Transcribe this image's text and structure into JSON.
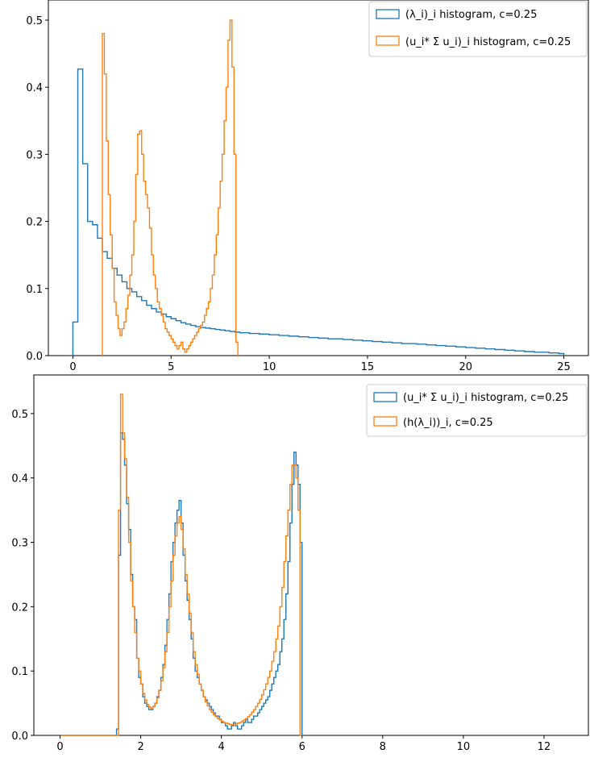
{
  "chart_data": [
    {
      "type": "histogram",
      "xlim": [
        -1.25,
        26.25
      ],
      "ylim": [
        0,
        0.53
      ],
      "xticks": [
        0,
        5,
        10,
        15,
        20,
        25
      ],
      "yticks": [
        0.0,
        0.1,
        0.2,
        0.3,
        0.4,
        0.5
      ],
      "xtick_labels": [
        "0",
        "5",
        "10",
        "15",
        "20",
        "25"
      ],
      "ytick_labels": [
        "0.0",
        "0.1",
        "0.2",
        "0.3",
        "0.4",
        "0.5"
      ],
      "legend_position": "top-right",
      "series": [
        {
          "name": "(λ_i)_i histogram, c=0.25",
          "color": "#1f77b4",
          "bin_start": 0.0,
          "bin_width": 0.25,
          "values": [
            0.05,
            0.427,
            0.286,
            0.2,
            0.195,
            0.175,
            0.155,
            0.145,
            0.13,
            0.12,
            0.11,
            0.1,
            0.095,
            0.088,
            0.082,
            0.075,
            0.07,
            0.065,
            0.062,
            0.058,
            0.055,
            0.052,
            0.049,
            0.047,
            0.045,
            0.043,
            0.042,
            0.041,
            0.04,
            0.039,
            0.038,
            0.037,
            0.036,
            0.035,
            0.034,
            0.034,
            0.033,
            0.033,
            0.032,
            0.032,
            0.031,
            0.031,
            0.03,
            0.03,
            0.029,
            0.029,
            0.028,
            0.028,
            0.027,
            0.027,
            0.026,
            0.026,
            0.025,
            0.025,
            0.025,
            0.024,
            0.024,
            0.023,
            0.023,
            0.022,
            0.022,
            0.021,
            0.021,
            0.02,
            0.02,
            0.019,
            0.019,
            0.018,
            0.018,
            0.018,
            0.017,
            0.017,
            0.016,
            0.016,
            0.015,
            0.015,
            0.014,
            0.014,
            0.013,
            0.013,
            0.012,
            0.012,
            0.011,
            0.011,
            0.01,
            0.01,
            0.009,
            0.009,
            0.008,
            0.008,
            0.007,
            0.007,
            0.006,
            0.006,
            0.005,
            0.005,
            0.005,
            0.004,
            0.004,
            0.003
          ]
        },
        {
          "name": "(u_i* Σ u_i)_i histogram, c=0.25",
          "color": "#ff7f0e",
          "bin_start": 1.5,
          "bin_width": 0.1,
          "values": [
            0.48,
            0.42,
            0.32,
            0.24,
            0.18,
            0.13,
            0.08,
            0.06,
            0.04,
            0.03,
            0.04,
            0.05,
            0.07,
            0.09,
            0.12,
            0.15,
            0.2,
            0.27,
            0.33,
            0.335,
            0.3,
            0.26,
            0.24,
            0.22,
            0.19,
            0.15,
            0.12,
            0.1,
            0.08,
            0.07,
            0.06,
            0.05,
            0.04,
            0.035,
            0.03,
            0.025,
            0.02,
            0.015,
            0.01,
            0.015,
            0.02,
            0.01,
            0.005,
            0.01,
            0.015,
            0.02,
            0.025,
            0.03,
            0.035,
            0.04,
            0.045,
            0.05,
            0.06,
            0.07,
            0.08,
            0.1,
            0.12,
            0.15,
            0.18,
            0.22,
            0.26,
            0.3,
            0.35,
            0.4,
            0.47,
            0.5,
            0.43,
            0.3,
            0.02
          ]
        }
      ]
    },
    {
      "type": "histogram",
      "xlim": [
        -0.65,
        13.1
      ],
      "ylim": [
        0,
        0.56
      ],
      "xticks": [
        0,
        2,
        4,
        6,
        8,
        10,
        12
      ],
      "yticks": [
        0.0,
        0.1,
        0.2,
        0.3,
        0.4,
        0.5
      ],
      "xtick_labels": [
        "0",
        "2",
        "4",
        "6",
        "8",
        "10",
        "12"
      ],
      "ytick_labels": [
        "0.0",
        "0.1",
        "0.2",
        "0.3",
        "0.4",
        "0.5"
      ],
      "legend_position": "top-right",
      "series": [
        {
          "name": "(u_i* Σ u_i)_i histogram, c=0.25",
          "color": "#1f77b4",
          "bin_start": 0.0,
          "bin_width": 0.05,
          "values": [
            0,
            0,
            0,
            0,
            0,
            0,
            0,
            0,
            0,
            0,
            0,
            0,
            0,
            0,
            0,
            0,
            0,
            0,
            0,
            0,
            0,
            0,
            0,
            0,
            0,
            0,
            0,
            0,
            0.01,
            0.28,
            0.47,
            0.46,
            0.42,
            0.36,
            0.32,
            0.25,
            0.2,
            0.18,
            0.12,
            0.09,
            0.08,
            0.06,
            0.05,
            0.045,
            0.04,
            0.04,
            0.045,
            0.05,
            0.06,
            0.07,
            0.09,
            0.11,
            0.14,
            0.18,
            0.22,
            0.27,
            0.3,
            0.33,
            0.35,
            0.365,
            0.33,
            0.28,
            0.24,
            0.21,
            0.18,
            0.15,
            0.12,
            0.1,
            0.09,
            0.08,
            0.07,
            0.06,
            0.055,
            0.05,
            0.045,
            0.04,
            0.035,
            0.03,
            0.03,
            0.025,
            0.02,
            0.02,
            0.015,
            0.01,
            0.01,
            0.015,
            0.02,
            0.015,
            0.01,
            0.01,
            0.015,
            0.02,
            0.025,
            0.02,
            0.02,
            0.025,
            0.03,
            0.03,
            0.035,
            0.04,
            0.045,
            0.05,
            0.055,
            0.06,
            0.07,
            0.08,
            0.09,
            0.1,
            0.11,
            0.13,
            0.15,
            0.18,
            0.22,
            0.27,
            0.33,
            0.39,
            0.44,
            0.42,
            0.39,
            0.3,
            0.0
          ]
        },
        {
          "name": "(h(λ_i))_i, c=0.25",
          "color": "#ff7f0e",
          "bin_start": 0.0,
          "bin_width": 0.05,
          "values": [
            0,
            0,
            0,
            0,
            0,
            0,
            0,
            0,
            0,
            0,
            0,
            0,
            0,
            0,
            0,
            0,
            0,
            0,
            0,
            0,
            0,
            0,
            0,
            0,
            0,
            0,
            0,
            0,
            0.0,
            0.35,
            0.53,
            0.47,
            0.43,
            0.37,
            0.3,
            0.24,
            0.2,
            0.16,
            0.12,
            0.1,
            0.08,
            0.065,
            0.055,
            0.048,
            0.044,
            0.042,
            0.045,
            0.05,
            0.058,
            0.07,
            0.085,
            0.105,
            0.13,
            0.16,
            0.2,
            0.24,
            0.28,
            0.31,
            0.33,
            0.34,
            0.32,
            0.29,
            0.25,
            0.22,
            0.19,
            0.16,
            0.13,
            0.11,
            0.095,
            0.08,
            0.07,
            0.06,
            0.052,
            0.046,
            0.04,
            0.036,
            0.032,
            0.029,
            0.026,
            0.024,
            0.022,
            0.02,
            0.019,
            0.018,
            0.017,
            0.017,
            0.017,
            0.018,
            0.019,
            0.02,
            0.022,
            0.024,
            0.026,
            0.029,
            0.032,
            0.036,
            0.04,
            0.045,
            0.05,
            0.056,
            0.063,
            0.071,
            0.08,
            0.09,
            0.1,
            0.115,
            0.13,
            0.15,
            0.17,
            0.2,
            0.23,
            0.27,
            0.31,
            0.35,
            0.39,
            0.42,
            0.42,
            0.4,
            0.35,
            0.0
          ]
        }
      ]
    }
  ]
}
